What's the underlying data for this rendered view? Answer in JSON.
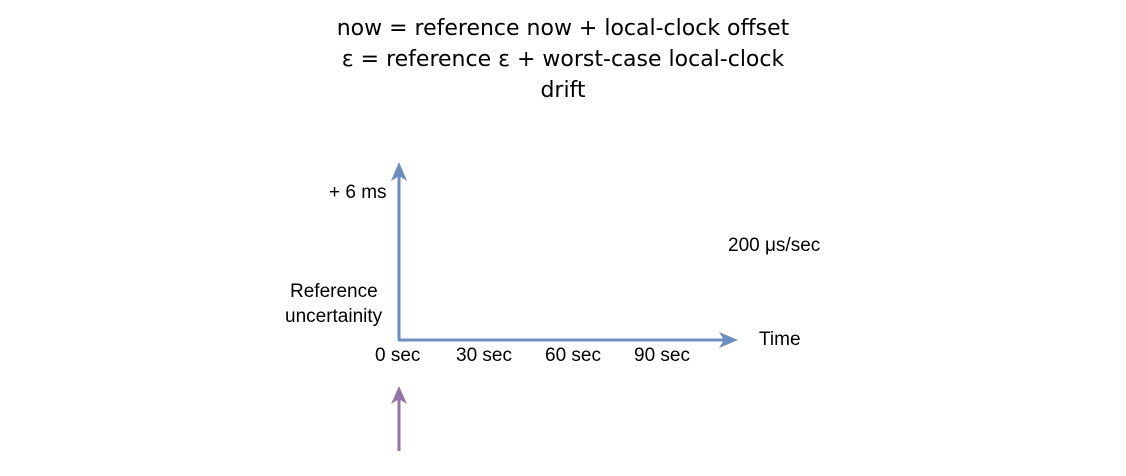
{
  "heading": {
    "line1": "now = reference now + local-clock offset",
    "line2": "ε  = reference ε + worst-case local-clock",
    "line3": "drift"
  },
  "y_axis": {
    "top_label": "+ 6 ms",
    "bottom_label_line1": "Reference",
    "bottom_label_line2": "uncertainity"
  },
  "x_axis": {
    "label": "Time",
    "ticks": [
      "0 sec",
      "30 sec",
      "60 sec",
      "90 sec"
    ]
  },
  "drift_rate": "200 μs/sec",
  "colors": {
    "axis": "#6c8ebf",
    "marker_arrow": "#9673a6"
  }
}
